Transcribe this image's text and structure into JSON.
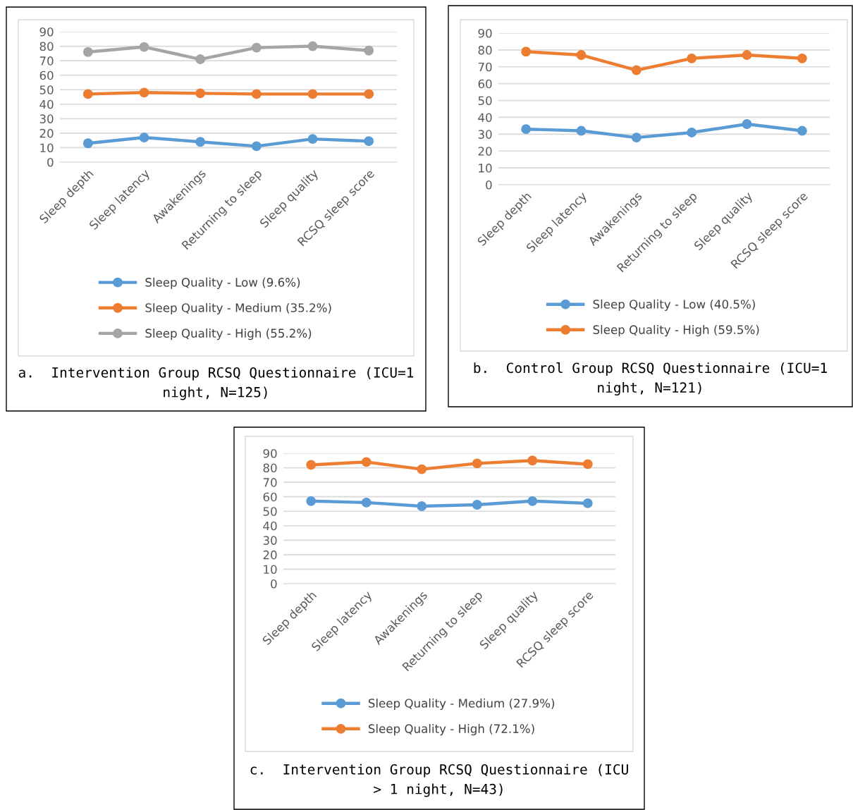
{
  "chart_data": [
    {
      "type": "line",
      "title": "a.  Intervention Group RCSQ Questionnaire (ICU=1 night, N=125)",
      "categories": [
        "Sleep depth",
        "Sleep latency",
        "Awakenings",
        "Returning to sleep",
        "Sleep quality",
        "RCSQ sleep score"
      ],
      "series": [
        {
          "name": "Sleep Quality - Low (9.6%)",
          "color": "#5b9bd5",
          "values": [
            13,
            17,
            14,
            11,
            16,
            14.5
          ]
        },
        {
          "name": "Sleep Quality - Medium (35.2%)",
          "color": "#ed7d31",
          "values": [
            47,
            48,
            47.5,
            47,
            47,
            47
          ]
        },
        {
          "name": "Sleep Quality - High (55.2%)",
          "color": "#a5a5a5",
          "values": [
            76,
            79.5,
            71,
            79,
            80,
            77
          ]
        }
      ],
      "ylim": [
        0,
        90
      ],
      "yticks": [
        0,
        10,
        20,
        30,
        40,
        50,
        60,
        70,
        80,
        90
      ],
      "grid": "y",
      "legend": "bottom",
      "marker": "circle",
      "line_style": "solid"
    },
    {
      "type": "line",
      "title": "b.  Control Group RCSQ Questionnaire (ICU=1 night, N=121)",
      "categories": [
        "Sleep depth",
        "Sleep latency",
        "Awakenings",
        "Returning to sleep",
        "Sleep quality",
        "RCSQ sleep score"
      ],
      "series": [
        {
          "name": "Sleep Quality - Low (40.5%)",
          "color": "#5b9bd5",
          "values": [
            33,
            32,
            28,
            31,
            36,
            32
          ]
        },
        {
          "name": "Sleep Quality - High (59.5%)",
          "color": "#ed7d31",
          "values": [
            79,
            77,
            68,
            75,
            77,
            75
          ]
        }
      ],
      "ylim": [
        0,
        90
      ],
      "yticks": [
        0,
        10,
        20,
        30,
        40,
        50,
        60,
        70,
        80,
        90
      ],
      "grid": "y",
      "legend": "bottom",
      "marker": "circle",
      "line_style": "solid"
    },
    {
      "type": "line",
      "title": "c.  Intervention Group RCSQ Questionnaire (ICU > 1 night, N=43)",
      "categories": [
        "Sleep depth",
        "Sleep latency",
        "Awakenings",
        "Returning to sleep",
        "Sleep quality",
        "RCSQ sleep score"
      ],
      "series": [
        {
          "name": "Sleep Quality - Medium (27.9%)",
          "color": "#5b9bd5",
          "values": [
            57,
            56,
            53.5,
            54.5,
            57,
            55.5
          ]
        },
        {
          "name": "Sleep Quality - High (72.1%)",
          "color": "#ed7d31",
          "values": [
            82,
            84,
            79,
            83,
            85,
            82.5
          ]
        }
      ],
      "ylim": [
        0,
        90
      ],
      "yticks": [
        0,
        10,
        20,
        30,
        40,
        50,
        60,
        70,
        80,
        90
      ],
      "grid": "y",
      "legend": "bottom",
      "marker": "circle",
      "line_style": "solid"
    }
  ]
}
